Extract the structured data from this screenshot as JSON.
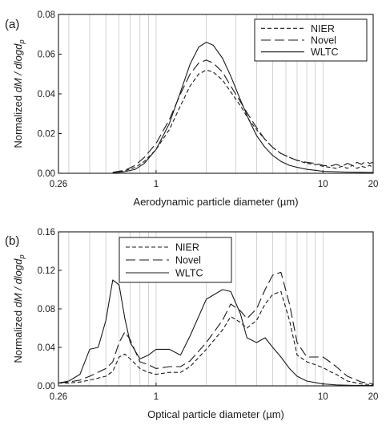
{
  "chart_data": [
    {
      "panel_label": "(a)",
      "type": "line",
      "xscale": "log",
      "xlim": [
        0.26,
        20
      ],
      "ylim": [
        0,
        0.08
      ],
      "xticks": [
        {
          "value": 0.26,
          "label": "0.26"
        },
        {
          "value": 1,
          "label": "1"
        },
        {
          "value": 10,
          "label": "10"
        },
        {
          "value": 20,
          "label": "20"
        }
      ],
      "yticks": [
        {
          "value": 0,
          "label": "0.00"
        },
        {
          "value": 0.02,
          "label": "0.02"
        },
        {
          "value": 0.04,
          "label": "0.04"
        },
        {
          "value": 0.06,
          "label": "0.06"
        },
        {
          "value": 0.08,
          "label": "0.08"
        }
      ],
      "xlabel": "Aerodynamic particle diameter (µm)",
      "ylabel_prefix": "Normalized ",
      "ylabel_italic": "dM / dlogd",
      "ylabel_sub": "p",
      "grid": "vertical",
      "legend_position": "top-right",
      "series": [
        {
          "name": "NIER",
          "style": "dashed",
          "points": [
            [
              0.55,
              0.0003
            ],
            [
              0.65,
              0.0012
            ],
            [
              0.75,
              0.003
            ],
            [
              0.85,
              0.006
            ],
            [
              1.0,
              0.012
            ],
            [
              1.2,
              0.022
            ],
            [
              1.4,
              0.034
            ],
            [
              1.6,
              0.044
            ],
            [
              1.8,
              0.05
            ],
            [
              2.0,
              0.052
            ],
            [
              2.2,
              0.051
            ],
            [
              2.5,
              0.047
            ],
            [
              2.8,
              0.041
            ],
            [
              3.2,
              0.034
            ],
            [
              3.6,
              0.027
            ],
            [
              4.0,
              0.022
            ],
            [
              4.5,
              0.017
            ],
            [
              5.0,
              0.013
            ],
            [
              5.6,
              0.01
            ],
            [
              6.3,
              0.008
            ],
            [
              7.0,
              0.0065
            ],
            [
              8.0,
              0.005
            ],
            [
              9.0,
              0.0045
            ],
            [
              10.0,
              0.0035
            ],
            [
              11.0,
              0.003
            ],
            [
              12.0,
              0.0025
            ],
            [
              13.0,
              0.0035
            ],
            [
              14.0,
              0.0025
            ],
            [
              15.0,
              0.004
            ],
            [
              16.0,
              0.0025
            ],
            [
              17.0,
              0.0035
            ],
            [
              18.0,
              0.003
            ],
            [
              19.0,
              0.004
            ],
            [
              20.0,
              0.003
            ]
          ]
        },
        {
          "name": "Novel",
          "style": "long-dashed",
          "points": [
            [
              0.55,
              0.0005
            ],
            [
              0.65,
              0.0015
            ],
            [
              0.75,
              0.004
            ],
            [
              0.85,
              0.008
            ],
            [
              1.0,
              0.015
            ],
            [
              1.2,
              0.027
            ],
            [
              1.4,
              0.04
            ],
            [
              1.6,
              0.05
            ],
            [
              1.8,
              0.0555
            ],
            [
              2.0,
              0.057
            ],
            [
              2.2,
              0.0555
            ],
            [
              2.5,
              0.051
            ],
            [
              2.8,
              0.044
            ],
            [
              3.2,
              0.036
            ],
            [
              3.6,
              0.029
            ],
            [
              4.0,
              0.023
            ],
            [
              4.5,
              0.017
            ],
            [
              5.0,
              0.013
            ],
            [
              5.6,
              0.01
            ],
            [
              6.3,
              0.008
            ],
            [
              7.0,
              0.0065
            ],
            [
              8.0,
              0.0055
            ],
            [
              9.0,
              0.005
            ],
            [
              10.0,
              0.004
            ],
            [
              11.0,
              0.0035
            ],
            [
              12.0,
              0.0045
            ],
            [
              13.0,
              0.0035
            ],
            [
              14.0,
              0.005
            ],
            [
              15.0,
              0.004
            ],
            [
              16.0,
              0.0055
            ],
            [
              17.0,
              0.0045
            ],
            [
              18.0,
              0.006
            ],
            [
              19.0,
              0.005
            ],
            [
              20.0,
              0.0055
            ]
          ]
        },
        {
          "name": "WLTC",
          "style": "solid",
          "points": [
            [
              0.55,
              0.0002
            ],
            [
              0.65,
              0.0008
            ],
            [
              0.75,
              0.002
            ],
            [
              0.85,
              0.005
            ],
            [
              1.0,
              0.012
            ],
            [
              1.2,
              0.025
            ],
            [
              1.4,
              0.041
            ],
            [
              1.6,
              0.055
            ],
            [
              1.8,
              0.0635
            ],
            [
              2.0,
              0.066
            ],
            [
              2.2,
              0.0645
            ],
            [
              2.5,
              0.058
            ],
            [
              2.8,
              0.049
            ],
            [
              3.2,
              0.037
            ],
            [
              3.6,
              0.027
            ],
            [
              4.0,
              0.019
            ],
            [
              4.5,
              0.013
            ],
            [
              5.0,
              0.009
            ],
            [
              5.6,
              0.006
            ],
            [
              6.3,
              0.004
            ],
            [
              7.0,
              0.003
            ],
            [
              8.0,
              0.002
            ],
            [
              9.0,
              0.0015
            ],
            [
              10.0,
              0.001
            ],
            [
              12.0,
              0.0008
            ],
            [
              14.0,
              0.0006
            ],
            [
              17.0,
              0.0005
            ],
            [
              20.0,
              0.0004
            ]
          ]
        }
      ]
    },
    {
      "panel_label": "(b)",
      "type": "line",
      "xscale": "log",
      "xlim": [
        0.26,
        20
      ],
      "ylim": [
        0,
        0.16
      ],
      "xticks": [
        {
          "value": 0.26,
          "label": "0.26"
        },
        {
          "value": 1,
          "label": "1"
        },
        {
          "value": 10,
          "label": "10"
        },
        {
          "value": 20,
          "label": "20"
        }
      ],
      "yticks": [
        {
          "value": 0,
          "label": "0.00"
        },
        {
          "value": 0.04,
          "label": "0.04"
        },
        {
          "value": 0.08,
          "label": "0.08"
        },
        {
          "value": 0.12,
          "label": "0.12"
        },
        {
          "value": 0.16,
          "label": "0.16"
        }
      ],
      "xlabel": "Optical particle diameter (µm)",
      "ylabel_prefix": "Normalized ",
      "ylabel_italic": "dM / dlogd",
      "ylabel_sub": "p",
      "grid": "vertical",
      "legend_position": "top-left",
      "series": [
        {
          "name": "NIER",
          "style": "dashed",
          "points": [
            [
              0.26,
              0.003
            ],
            [
              0.3,
              0.003
            ],
            [
              0.35,
              0.004
            ],
            [
              0.4,
              0.006
            ],
            [
              0.5,
              0.01
            ],
            [
              0.55,
              0.015
            ],
            [
              0.6,
              0.03
            ],
            [
              0.65,
              0.033
            ],
            [
              0.7,
              0.028
            ],
            [
              0.8,
              0.018
            ],
            [
              0.9,
              0.014
            ],
            [
              1.0,
              0.012
            ],
            [
              1.2,
              0.014
            ],
            [
              1.4,
              0.014
            ],
            [
              1.6,
              0.02
            ],
            [
              2.0,
              0.038
            ],
            [
              2.5,
              0.058
            ],
            [
              2.8,
              0.072
            ],
            [
              3.2,
              0.066
            ],
            [
              3.5,
              0.06
            ],
            [
              4.0,
              0.068
            ],
            [
              4.5,
              0.085
            ],
            [
              5.0,
              0.095
            ],
            [
              5.6,
              0.098
            ],
            [
              6.3,
              0.068
            ],
            [
              7.0,
              0.032
            ],
            [
              8.0,
              0.025
            ],
            [
              9.0,
              0.022
            ],
            [
              10.0,
              0.019
            ],
            [
              11.0,
              0.015
            ],
            [
              12.0,
              0.012
            ],
            [
              14.0,
              0.005
            ],
            [
              17.0,
              0.002
            ],
            [
              20.0,
              0.001
            ]
          ]
        },
        {
          "name": "Novel",
          "style": "long-dashed",
          "points": [
            [
              0.26,
              0.003
            ],
            [
              0.3,
              0.004
            ],
            [
              0.35,
              0.006
            ],
            [
              0.4,
              0.01
            ],
            [
              0.5,
              0.018
            ],
            [
              0.55,
              0.025
            ],
            [
              0.6,
              0.045
            ],
            [
              0.65,
              0.056
            ],
            [
              0.7,
              0.048
            ],
            [
              0.8,
              0.025
            ],
            [
              0.9,
              0.022
            ],
            [
              1.0,
              0.018
            ],
            [
              1.2,
              0.02
            ],
            [
              1.4,
              0.02
            ],
            [
              1.6,
              0.026
            ],
            [
              2.0,
              0.045
            ],
            [
              2.5,
              0.068
            ],
            [
              2.8,
              0.085
            ],
            [
              3.2,
              0.078
            ],
            [
              3.5,
              0.07
            ],
            [
              4.0,
              0.08
            ],
            [
              4.5,
              0.1
            ],
            [
              5.0,
              0.115
            ],
            [
              5.6,
              0.118
            ],
            [
              6.3,
              0.085
            ],
            [
              7.0,
              0.045
            ],
            [
              8.0,
              0.03
            ],
            [
              9.0,
              0.03
            ],
            [
              10.0,
              0.03
            ],
            [
              11.0,
              0.025
            ],
            [
              12.0,
              0.02
            ],
            [
              14.0,
              0.01
            ],
            [
              17.0,
              0.004
            ],
            [
              20.0,
              0.002
            ]
          ]
        },
        {
          "name": "WLTC",
          "style": "solid",
          "points": [
            [
              0.26,
              0.003
            ],
            [
              0.3,
              0.005
            ],
            [
              0.35,
              0.012
            ],
            [
              0.4,
              0.038
            ],
            [
              0.45,
              0.04
            ],
            [
              0.5,
              0.068
            ],
            [
              0.55,
              0.11
            ],
            [
              0.6,
              0.105
            ],
            [
              0.65,
              0.07
            ],
            [
              0.7,
              0.045
            ],
            [
              0.8,
              0.028
            ],
            [
              0.9,
              0.032
            ],
            [
              1.0,
              0.038
            ],
            [
              1.2,
              0.038
            ],
            [
              1.4,
              0.032
            ],
            [
              1.6,
              0.052
            ],
            [
              2.0,
              0.09
            ],
            [
              2.5,
              0.1
            ],
            [
              2.8,
              0.098
            ],
            [
              3.2,
              0.075
            ],
            [
              3.5,
              0.05
            ],
            [
              4.0,
              0.045
            ],
            [
              4.5,
              0.05
            ],
            [
              5.0,
              0.04
            ],
            [
              5.6,
              0.03
            ],
            [
              6.3,
              0.018
            ],
            [
              7.0,
              0.01
            ],
            [
              8.0,
              0.005
            ],
            [
              10.0,
              0.002
            ],
            [
              12.0,
              0.001
            ],
            [
              15.0,
              0.0005
            ],
            [
              20.0,
              0.0003
            ]
          ]
        }
      ]
    }
  ]
}
